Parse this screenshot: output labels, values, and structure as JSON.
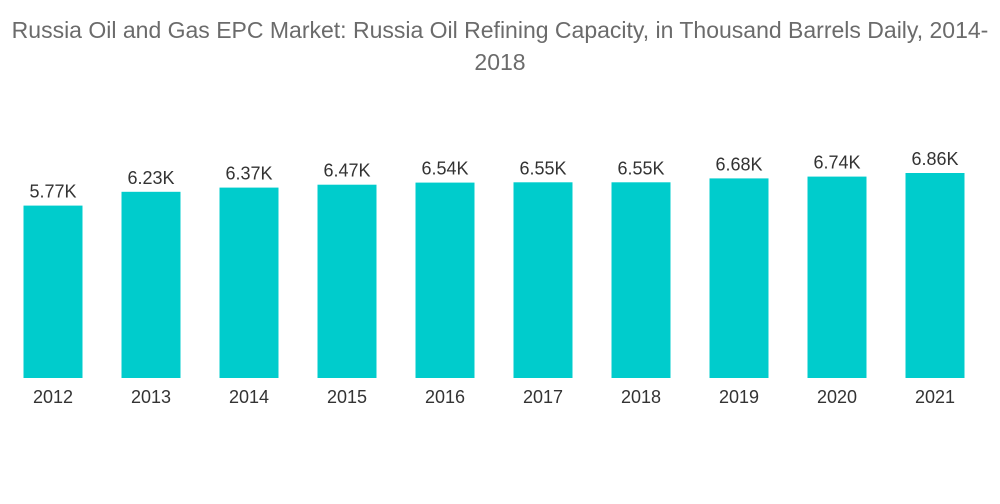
{
  "chart_data": {
    "type": "bar",
    "title": "Russia Oil and Gas EPC Market: Russia Oil Refining Capacity, in Thousand Barrels Daily, 2014-2018",
    "categories": [
      "2012",
      "2013",
      "2014",
      "2015",
      "2016",
      "2017",
      "2018",
      "2019",
      "2020",
      "2021"
    ],
    "values": [
      5.77,
      6.23,
      6.37,
      6.47,
      6.54,
      6.55,
      6.55,
      6.68,
      6.74,
      6.86
    ],
    "data_labels": [
      "5.77K",
      "6.23K",
      "6.37K",
      "6.47K",
      "6.54K",
      "6.55K",
      "6.55K",
      "6.68K",
      "6.74K",
      "6.86K"
    ],
    "ylim": [
      0,
      6.86
    ],
    "grid": false,
    "legend": "none",
    "bar_color": "#00cccc"
  }
}
